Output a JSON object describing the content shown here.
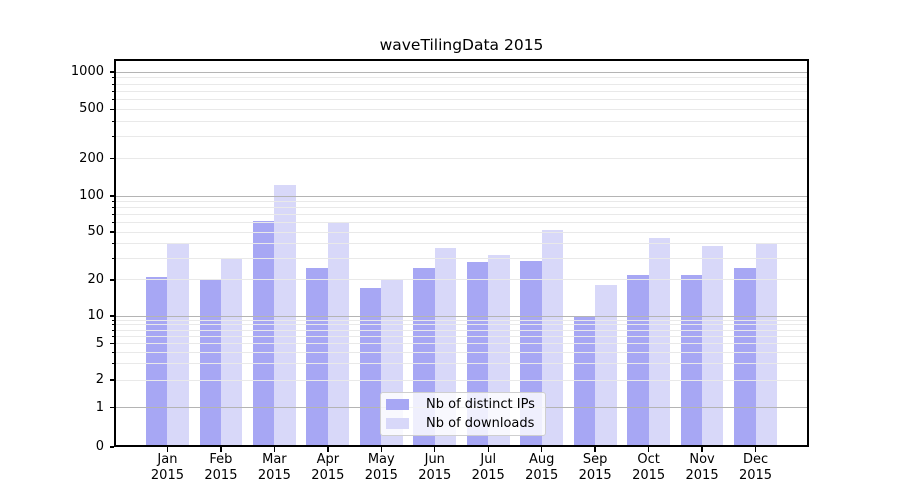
{
  "title": "waveTilingData 2015",
  "chart_data": {
    "type": "bar",
    "title": "waveTilingData 2015",
    "categories": [
      "Jan 2015",
      "Feb 2015",
      "Mar 2015",
      "Apr 2015",
      "May 2015",
      "Jun 2015",
      "Jul 2015",
      "Aug 2015",
      "Sep 2015",
      "Oct 2015",
      "Nov 2015",
      "Dec 2015"
    ],
    "x_tick_months": [
      "Jan",
      "Feb",
      "Mar",
      "Apr",
      "May",
      "Jun",
      "Jul",
      "Aug",
      "Sep",
      "Oct",
      "Nov",
      "Dec"
    ],
    "x_tick_year": "2015",
    "series": [
      {
        "name": "Nb of distinct IPs",
        "color": "#a7a7f4",
        "values": [
          21,
          20,
          62,
          25,
          17,
          25,
          28,
          29,
          10,
          22,
          22,
          25
        ]
      },
      {
        "name": "Nb of downloads",
        "color": "#d8d8f9",
        "values": [
          40,
          30,
          123,
          60,
          20,
          37,
          32,
          52,
          18,
          45,
          38,
          40
        ]
      }
    ],
    "yscale": "symlog",
    "ylim": [
      0,
      1400
    ],
    "y_tick_labels": [
      "1000",
      "500",
      "200",
      "100",
      "50",
      "20",
      "10",
      "5",
      "2",
      "1",
      "0"
    ],
    "y_tick_values": [
      1000,
      500,
      200,
      100,
      50,
      20,
      10,
      5,
      2,
      1,
      0
    ],
    "y_minor_grid_values": [
      2,
      3,
      4,
      5,
      6,
      7,
      8,
      9,
      20,
      30,
      40,
      50,
      60,
      70,
      80,
      90,
      200,
      300,
      400,
      500,
      600,
      700,
      800,
      900
    ],
    "y_major_grid_values": [
      1,
      10,
      100,
      1000
    ],
    "grid": "on",
    "legend_position": "lower center",
    "colors": {
      "bar_dark": "#a7a7f4",
      "bar_light": "#d8d8f9",
      "grid_minor": "#e9e9e9",
      "grid_major": "#b4b4b4",
      "spine": "#000000"
    }
  }
}
